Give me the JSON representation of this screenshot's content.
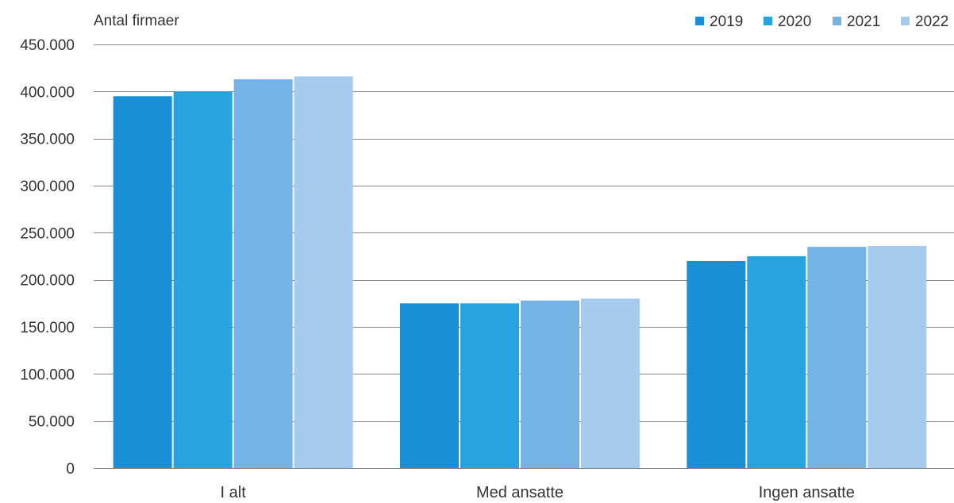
{
  "chart_data": {
    "type": "bar",
    "ylabel": "Antal firmaer",
    "xlabel": "",
    "title": "",
    "categories": [
      "I alt",
      "Med ansatte",
      "Ingen ansatte"
    ],
    "series": [
      {
        "name": "2019",
        "color": "#1a8fd6",
        "values": [
          395000,
          175000,
          220000
        ]
      },
      {
        "name": "2020",
        "color": "#28a3e0",
        "values": [
          400000,
          175000,
          225000
        ]
      },
      {
        "name": "2021",
        "color": "#74b3e6",
        "values": [
          413000,
          178000,
          235000
        ]
      },
      {
        "name": "2022",
        "color": "#a6cbef",
        "values": [
          416000,
          180000,
          236000
        ]
      }
    ],
    "ylim": [
      0,
      450000
    ],
    "yticks": [
      0,
      50000,
      100000,
      150000,
      200000,
      250000,
      300000,
      350000,
      400000,
      450000
    ],
    "ytick_labels": [
      "0",
      "50.000",
      "100.000",
      "150.000",
      "200.000",
      "250.000",
      "300.000",
      "350.000",
      "400.000",
      "450.000"
    ],
    "grid": true,
    "legend_position": "top-right"
  }
}
